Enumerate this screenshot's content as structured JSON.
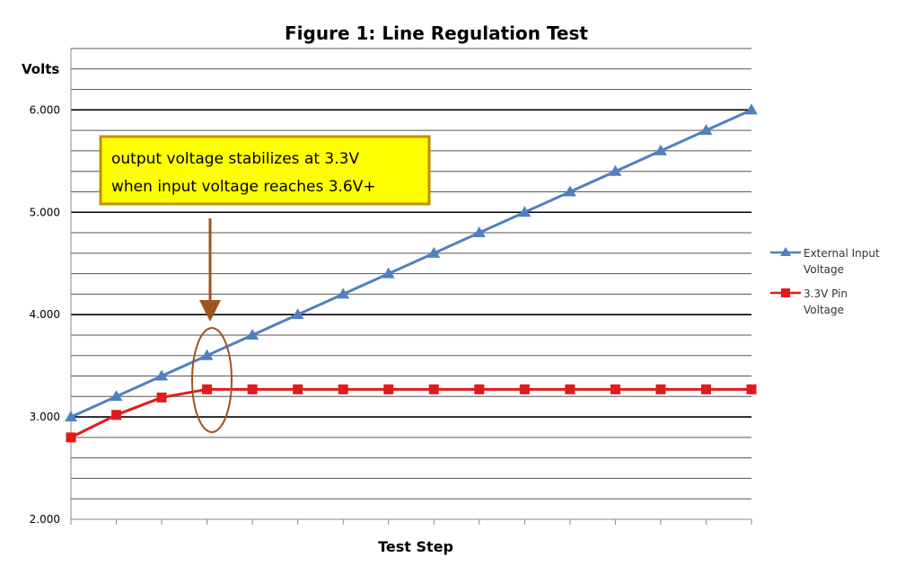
{
  "chart_data": {
    "type": "line",
    "title": "Figure 1: Line Regulation Test",
    "ylabel": "Volts",
    "xlabel": "Test Step",
    "ylim": [
      2.0,
      6.6
    ],
    "y_ticks": [
      "2.000",
      "3.000",
      "4.000",
      "5.000",
      "6.000"
    ],
    "grid": true,
    "legend_position": "right",
    "x": [
      1,
      2,
      3,
      4,
      5,
      6,
      7,
      8,
      9,
      10,
      11,
      12,
      13,
      14,
      15,
      16
    ],
    "series": [
      {
        "name": "External Input Voltage",
        "legend_lines": [
          "External Input",
          "Voltage"
        ],
        "color": "#4f81bd",
        "marker": "triangle",
        "values": [
          3.0,
          3.2,
          3.4,
          3.6,
          3.8,
          4.0,
          4.2,
          4.4,
          4.6,
          4.8,
          5.0,
          5.2,
          5.4,
          5.6,
          5.8,
          6.0
        ]
      },
      {
        "name": "3.3V Pin Voltage",
        "legend_lines": [
          "3.3V Pin",
          "Voltage"
        ],
        "color": "#e31a1c",
        "marker": "square",
        "values": [
          2.8,
          3.02,
          3.19,
          3.27,
          3.27,
          3.27,
          3.27,
          3.27,
          3.27,
          3.27,
          3.27,
          3.27,
          3.27,
          3.27,
          3.27,
          3.27
        ]
      }
    ],
    "annotations": {
      "note_lines": [
        "output voltage stabilizes at 3.3V",
        "when input voltage reaches 3.6V+"
      ],
      "note_fill": "#ffff00",
      "note_border": "#c09000",
      "highlight_color": "#a0521d",
      "highlight_step": 4
    }
  }
}
